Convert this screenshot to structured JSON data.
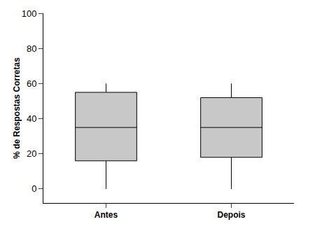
{
  "chart_data": {
    "type": "box",
    "categories": [
      "Antes",
      "Depois"
    ],
    "min": [
      0,
      0
    ],
    "q1": [
      16,
      18
    ],
    "median": [
      35,
      35
    ],
    "q3": [
      55,
      52
    ],
    "max": [
      60,
      60
    ],
    "color": "#c8c8c8",
    "y_label": "% de Respostas Corretas",
    "ylim": [
      -8,
      100
    ],
    "yticks": [
      0,
      20,
      40,
      60,
      80,
      100
    ],
    "grid": false
  }
}
